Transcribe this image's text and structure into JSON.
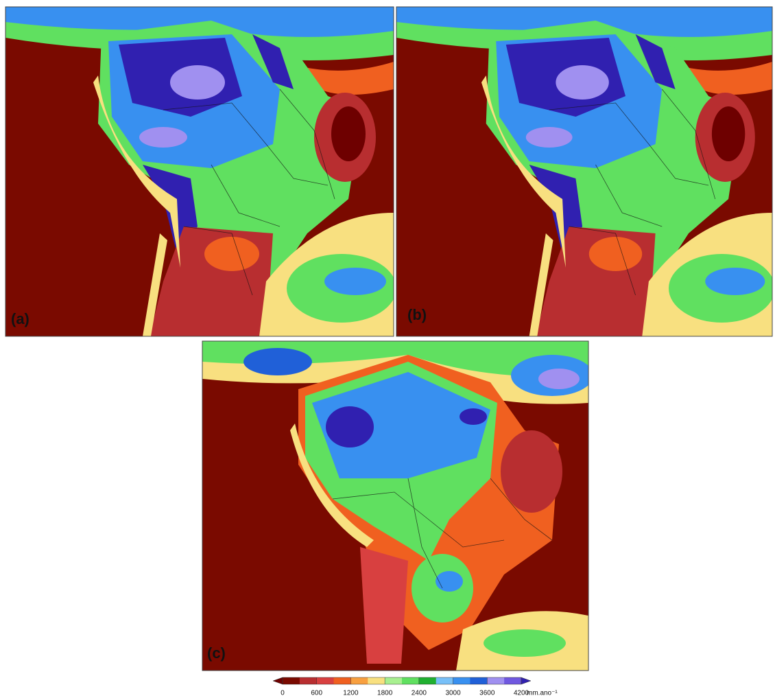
{
  "panels": [
    {
      "label": "(a)"
    },
    {
      "label": "(b)"
    },
    {
      "label": "(c)"
    }
  ],
  "colorbar": {
    "ticks": [
      0,
      600,
      1200,
      1800,
      2400,
      3000,
      3600,
      4200
    ],
    "unit": "mm.ano⁻¹",
    "colors": [
      "#6e0000",
      "#7a0a00",
      "#b82e30",
      "#d84040",
      "#f06020",
      "#f8a040",
      "#f8e080",
      "#a8f090",
      "#60e060",
      "#20b030",
      "#78c0f8",
      "#3890f0",
      "#2060d8",
      "#a090f0",
      "#7058e0",
      "#3020b0"
    ]
  }
}
